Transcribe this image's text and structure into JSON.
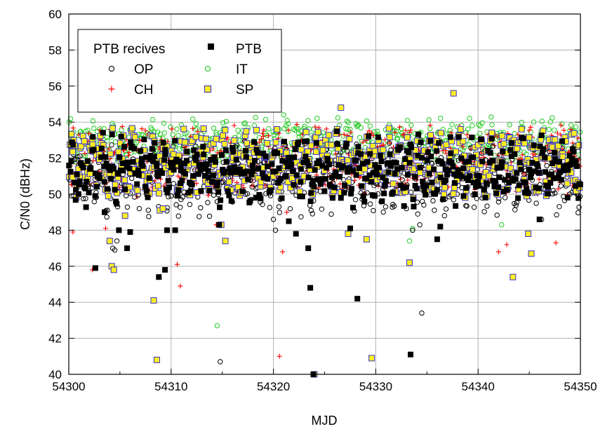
{
  "chart_data": {
    "type": "scatter",
    "title": "",
    "xlabel": "MJD",
    "ylabel": "C/N0 (dBHz)",
    "xlim": [
      54300,
      54350
    ],
    "ylim": [
      40,
      60
    ],
    "xticks": [
      54300,
      54310,
      54320,
      54330,
      54340,
      54350
    ],
    "yticks": [
      40,
      42,
      44,
      46,
      48,
      50,
      52,
      54,
      56,
      58,
      60
    ],
    "grid": true,
    "legend": {
      "title": "PTB recives",
      "placement": "top-left",
      "entries": [
        "PTB",
        "OP",
        "IT",
        "CH",
        "SP"
      ]
    },
    "series": [
      {
        "name": "PTB",
        "marker": "filled-square",
        "color": "#000000",
        "dense_band": {
          "center": 51.4,
          "spread": 1.3,
          "amplitude": 0.9
        },
        "x": [
          54302.6,
          54303.5,
          54304.9,
          54305.7,
          54306.0,
          54308.8,
          54309.4,
          54309.6,
          54310.4,
          54310.9,
          54314.7,
          54318.3,
          54321.5,
          54322.2,
          54323.4,
          54323.6,
          54323.9,
          54327.5,
          54328.2,
          54333.4,
          54336.0,
          54336.3,
          54346.0
        ],
        "y": [
          45.9,
          49.0,
          48.0,
          47.0,
          47.9,
          45.4,
          45.8,
          48.0,
          48.0,
          50.6,
          48.3,
          49.8,
          48.5,
          47.8,
          47.0,
          44.8,
          40.0,
          48.1,
          44.2,
          41.1,
          47.5,
          48.2,
          48.6
        ]
      },
      {
        "name": "OP",
        "marker": "open-circle",
        "color": "#000000",
        "dense_band": {
          "center": 50.9,
          "spread": 1.6,
          "amplitude": 0.6
        },
        "x": [
          54300.3,
          54304.3,
          54304.5,
          54304.7,
          54310.0,
          54314.8,
          54320.0,
          54320.2,
          54333.0,
          54333.6,
          54334.1,
          54334.3,
          54334.5,
          54334.7,
          54346.2
        ],
        "y": [
          49.9,
          47.0,
          46.9,
          47.4,
          49.9,
          40.7,
          48.6,
          48.0,
          49.2,
          48.0,
          48.9,
          48.3,
          43.4,
          49.4,
          48.6
        ]
      },
      {
        "name": "IT",
        "marker": "open-circle",
        "color": "#22cc22",
        "dense_band": {
          "center": 53.0,
          "spread": 0.9,
          "amplitude": 0.4
        },
        "x": [
          54314.5,
          54321.0,
          54333.3,
          54333.6,
          54342.3
        ],
        "y": [
          42.7,
          54.4,
          47.4,
          48.1,
          48.3
        ]
      },
      {
        "name": "CH",
        "marker": "plus",
        "color": "#ff0000",
        "dense_band": {
          "center": 51.9,
          "spread": 1.8,
          "amplitude": 0.3
        },
        "x": [
          54300.4,
          54302.3,
          54303.6,
          54310.6,
          54310.9,
          54314.4,
          54320.6,
          54320.9,
          54321.3,
          54342.0,
          54342.8,
          54347.6
        ],
        "y": [
          47.9,
          45.8,
          48.1,
          46.1,
          44.9,
          48.3,
          41.0,
          46.8,
          49.0,
          46.8,
          47.2,
          47.3
        ]
      },
      {
        "name": "SP",
        "marker": "filled-square",
        "color": "#ffee22",
        "edgecolor": "#3333cc",
        "dense_band": {
          "center": 51.7,
          "spread": 1.5,
          "amplitude": 0.5
        },
        "x": [
          54304.0,
          54304.2,
          54304.4,
          54305.5,
          54308.3,
          54308.6,
          54308.9,
          54309.2,
          54314.9,
          54315.3,
          54324.0,
          54326.6,
          54327.3,
          54329.1,
          54329.6,
          54333.3,
          54337.6,
          54343.4,
          54344.9,
          54345.2
        ],
        "y": [
          47.4,
          46.0,
          45.8,
          48.8,
          44.1,
          40.8,
          49.1,
          49.2,
          48.3,
          47.4,
          40.0,
          54.8,
          47.8,
          47.5,
          40.9,
          46.2,
          55.6,
          45.4,
          47.8,
          46.7
        ]
      }
    ]
  }
}
